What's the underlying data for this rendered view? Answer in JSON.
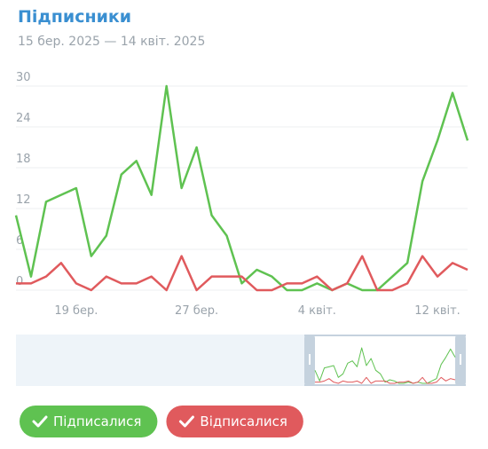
{
  "chart_data": {
    "type": "line",
    "title": "Підписники",
    "subtitle": "15 бер. 2025 — 14 квіт. 2025",
    "categories": [
      null,
      null,
      null,
      null,
      "19 бер.",
      null,
      null,
      null,
      null,
      null,
      null,
      null,
      "27 бер.",
      null,
      null,
      null,
      null,
      null,
      null,
      null,
      "4 квіт.",
      null,
      null,
      null,
      null,
      null,
      null,
      null,
      "12 квіт.",
      null,
      null
    ],
    "series": [
      {
        "name": "Підписалися",
        "color": "#5fc251",
        "values": [
          11,
          2,
          13,
          14,
          15,
          5,
          8,
          17,
          19,
          14,
          30,
          15,
          21,
          11,
          8,
          1,
          3,
          2,
          0,
          0,
          1,
          0,
          1,
          0,
          0,
          2,
          4,
          16,
          22,
          29,
          22
        ]
      },
      {
        "name": "Відписалися",
        "color": "#e05a5d",
        "values": [
          1,
          1,
          2,
          4,
          1,
          0,
          2,
          1,
          1,
          2,
          0,
          5,
          0,
          2,
          2,
          2,
          0,
          0,
          1,
          1,
          2,
          0,
          1,
          5,
          0,
          0,
          1,
          5,
          2,
          4,
          3
        ]
      }
    ],
    "ylim": [
      0,
      30
    ],
    "yticks": [
      0,
      6,
      12,
      18,
      24,
      30
    ],
    "grid": true
  }
}
